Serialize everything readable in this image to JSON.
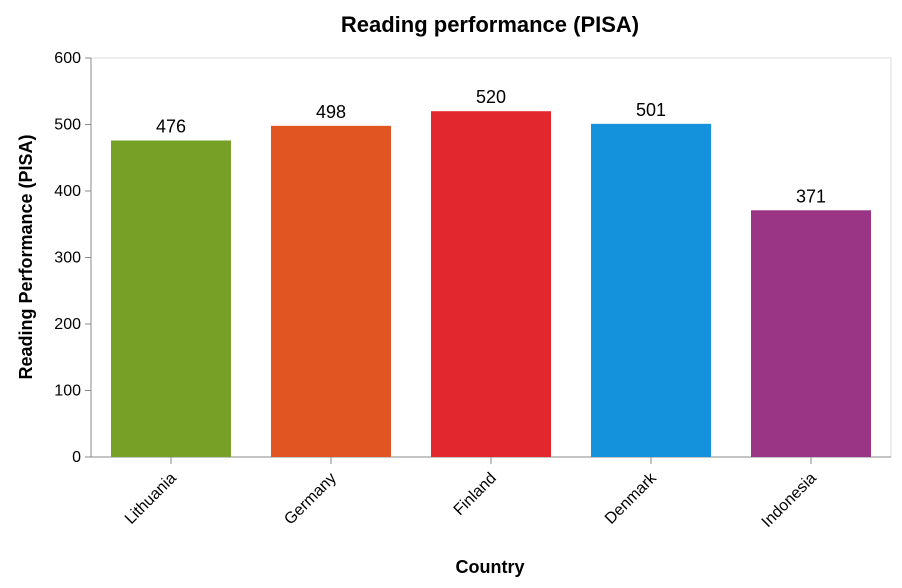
{
  "chart_data": {
    "type": "bar",
    "title": "Reading performance (PISA)",
    "xlabel": "Country",
    "ylabel": "Reading Performance (PISA)",
    "categories": [
      "Lithuania",
      "Germany",
      "Finland",
      "Denmark",
      "Indonesia"
    ],
    "values": [
      476,
      498,
      520,
      501,
      371
    ],
    "colors": [
      "#76a026",
      "#e05521",
      "#e2282e",
      "#1592dc",
      "#9a3585"
    ],
    "ylim": [
      0,
      600
    ],
    "yticks": [
      0,
      100,
      200,
      300,
      400,
      500,
      600
    ],
    "grid": false,
    "legend": "none",
    "data_labels": true
  }
}
